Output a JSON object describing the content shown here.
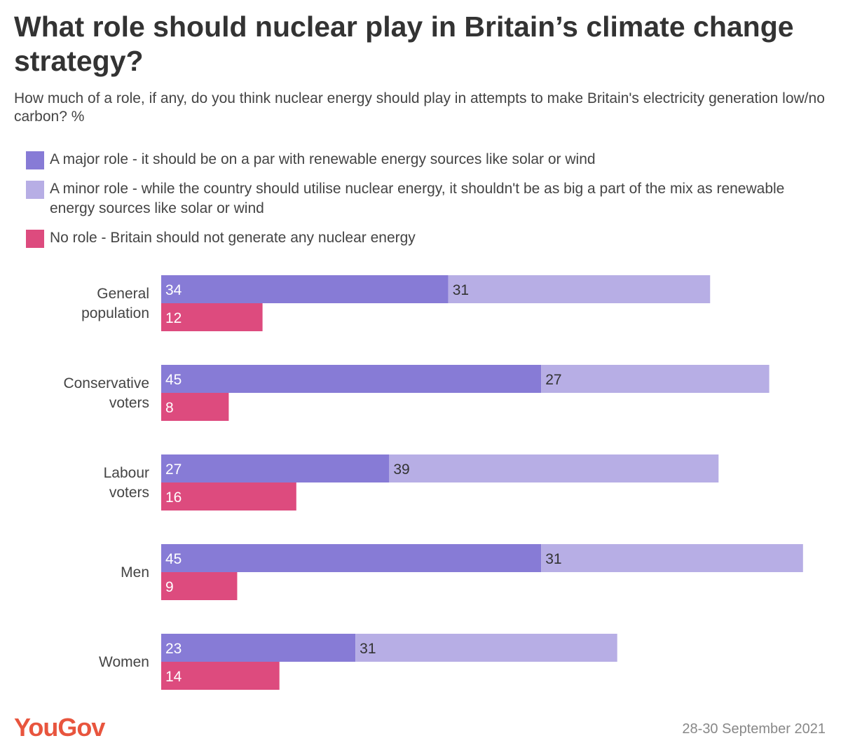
{
  "title": "What role should nuclear play in Britain’s climate change strategy?",
  "subtitle": "How much of a role, if any, do you think nuclear energy should play in attempts to make Britain's electricity generation low/no carbon? %",
  "legend": [
    {
      "label": "A major role - it should be on a par with renewable energy sources like solar or wind",
      "color": "#877bd6"
    },
    {
      "label": "A minor role - while the country should utilise nuclear energy, it shouldn't be as big a part of the mix as renewable energy sources like solar or wind",
      "color": "#b7aee5"
    },
    {
      "label": "No role - Britain should not generate any nuclear energy",
      "color": "#dd4b7e"
    }
  ],
  "chart_data": {
    "type": "bar",
    "orientation": "horizontal",
    "stacked_pair": [
      "A major role",
      "A minor role"
    ],
    "separate_bar": "No role",
    "categories": [
      [
        "General",
        "population"
      ],
      [
        "Conservative",
        "voters"
      ],
      [
        "Labour",
        "voters"
      ],
      [
        "Men"
      ],
      [
        "Women"
      ]
    ],
    "series": [
      {
        "name": "A major role - it should be on a par with renewable energy sources like solar or wind",
        "values": [
          34,
          45,
          27,
          45,
          23
        ],
        "color": "#877bd6"
      },
      {
        "name": "A minor role - while the country should utilise nuclear energy, it shouldn't be as big a part of the mix as renewable energy sources like solar or wind",
        "values": [
          31,
          27,
          39,
          31,
          31
        ],
        "color": "#b7aee5"
      },
      {
        "name": "No role - Britain should not generate any nuclear energy",
        "values": [
          12,
          8,
          16,
          9,
          14
        ],
        "color": "#dd4b7e"
      }
    ],
    "xlim": [
      0,
      76
    ],
    "grid": false
  },
  "footer": {
    "logo": "YouGov",
    "logo_color": "#e8553e",
    "date": "28-30 September 2021"
  }
}
